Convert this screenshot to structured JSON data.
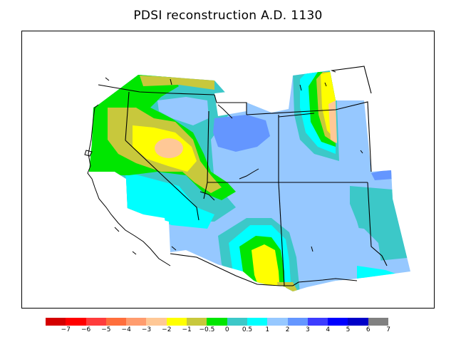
{
  "title": "PDSI reconstruction A.D. 1130",
  "legend": {
    "colors": [
      "#d40000",
      "#ff0000",
      "#ff3c3c",
      "#ff6e3c",
      "#ff9c6e",
      "#ffc896",
      "#ffff00",
      "#c8c83c",
      "#00e600",
      "#3cc8c8",
      "#00ffff",
      "#96c8ff",
      "#6496ff",
      "#3c3cff",
      "#0000ff",
      "#0000c8",
      "#808080"
    ],
    "labels": [
      "−7",
      "−6",
      "−5",
      "−4",
      "−3",
      "−2",
      "−1",
      "−0.5",
      "0",
      "0.5",
      "1",
      "2",
      "3",
      "4",
      "5",
      "6",
      "7"
    ]
  }
}
